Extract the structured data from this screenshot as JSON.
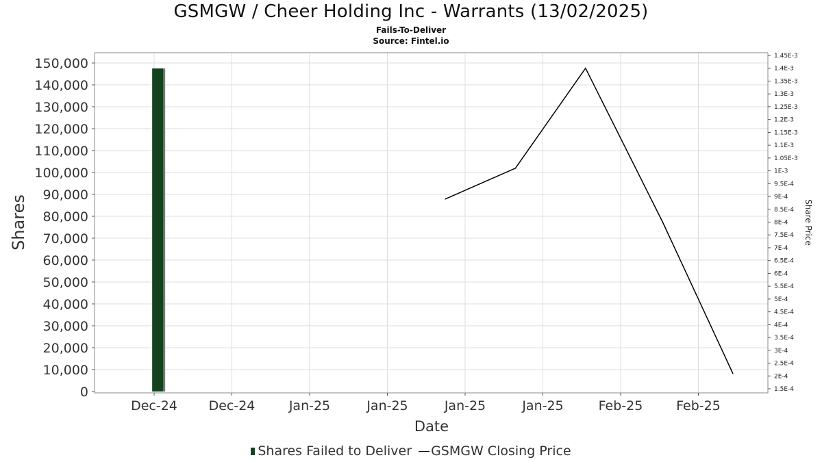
{
  "chart_data": {
    "type": "bar",
    "title": "GSMGW / Cheer Holding Inc - Warrants (13/02/2025)",
    "subtitle": "Fails-To-Deliver",
    "source": "Source: Fintel.io",
    "xlabel": "Date",
    "ylabel": "Shares",
    "y2label": "Share Price",
    "ylim": [
      0,
      150000
    ],
    "y2lim": [
      0.00015,
      0.00145
    ],
    "grid": true,
    "legend_position": "bottom",
    "x_tick_labels": [
      "Dec-24",
      "Dec-24",
      "Jan-25",
      "Jan-25",
      "Jan-25",
      "Jan-25",
      "Feb-25",
      "Feb-25"
    ],
    "y_tick_labels": [
      "0",
      "10,000",
      "20,000",
      "30,000",
      "40,000",
      "50,000",
      "60,000",
      "70,000",
      "80,000",
      "90,000",
      "100,000",
      "110,000",
      "120,000",
      "130,000",
      "140,000",
      "150,000"
    ],
    "y2_tick_labels": [
      "1.5E-4",
      "2E-4",
      "2.5E-4",
      "3E-4",
      "3.5E-4",
      "4E-4",
      "4.5E-4",
      "5E-4",
      "5.5E-4",
      "6E-4",
      "6.5E-4",
      "7E-4",
      "7.5E-4",
      "8E-4",
      "8.5E-4",
      "9E-4",
      "9.5E-4",
      "1E-3",
      "1.05E-3",
      "1.1E-3",
      "1.15E-3",
      "1.2E-3",
      "1.25E-3",
      "1.3E-3",
      "1.35E-3",
      "1.4E-3",
      "1.45E-3"
    ],
    "series": [
      {
        "name": "Shares Failed to Deliver",
        "kind": "bar",
        "axis": "left",
        "color": "#14421f",
        "points": [
          {
            "x": "2024-11-27",
            "y": 147500
          }
        ]
      },
      {
        "name": "GSMGW Closing Price",
        "kind": "line",
        "axis": "right",
        "color": "#000000",
        "points": [
          {
            "x": "2025-01-07",
            "y": 0.00089
          },
          {
            "x": "2025-01-17",
            "y": 0.00101
          },
          {
            "x": "2025-01-27",
            "y": 0.0014
          },
          {
            "x": "2025-02-07",
            "y": 0.0008
          },
          {
            "x": "2025-02-17",
            "y": 0.00021
          }
        ]
      }
    ]
  }
}
